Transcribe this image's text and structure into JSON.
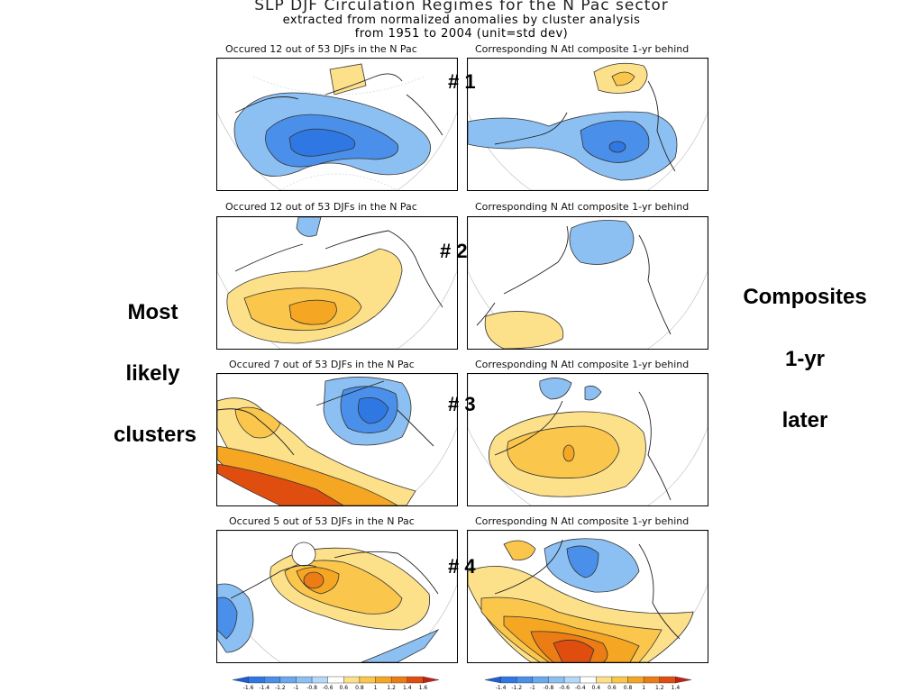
{
  "title": {
    "line1": "SLP DJF Circulation Regimes for the N Pac sector",
    "line2": "extracted from normalized anomalies by cluster analysis",
    "line3": "from 1951 to 2004 (unit=std dev)"
  },
  "captions": {
    "left": [
      "Occured 12 out of 53 DJFs in the N Pac",
      "Occured 12 out of 53 DJFs in the N Pac",
      "Occured 7 out of 53 DJFs in the N Pac",
      "Occured 5 out of 53 DJFs in the N Pac"
    ],
    "right": "Corresponding N Atl composite 1-yr behind"
  },
  "cluster_labels": [
    "# 1",
    "# 2",
    "# 3",
    "# 4"
  ],
  "left_annotation": [
    "Most",
    "likely",
    "clusters"
  ],
  "right_annotation": [
    "Composites",
    "1-yr",
    "later"
  ],
  "colorbar_left": {
    "ticks": [
      "-1.6",
      "-1.4",
      "-1.2",
      "-1",
      "-0.8",
      "-0.6",
      "0.6",
      "0.8",
      "1",
      "1.2",
      "1.4",
      "1.6"
    ],
    "colors": [
      "#1c5fd6",
      "#2f78e3",
      "#4a90ea",
      "#6aa8ef",
      "#8cc0f3",
      "#b4d8f8",
      "#ffffff",
      "#fde08a",
      "#fbc64c",
      "#f5a623",
      "#ec7d14",
      "#df4e0e",
      "#c4200f"
    ]
  },
  "colorbar_right": {
    "ticks": [
      "-1.4",
      "-1.2",
      "-1",
      "-0.8",
      "-0.6",
      "-0.4",
      "0.4",
      "0.6",
      "0.8",
      "1",
      "1.2",
      "1.4"
    ],
    "colors": [
      "#1c5fd6",
      "#2f78e3",
      "#4a90ea",
      "#6aa8ef",
      "#8cc0f3",
      "#b4d8f8",
      "#ffffff",
      "#fde08a",
      "#fbc64c",
      "#f5a623",
      "#ec7d14",
      "#df4e0e",
      "#c4200f"
    ]
  },
  "colors": {
    "blue_light": "#8cc0f3",
    "blue_mid": "#4a90ea",
    "blue_dark": "#2f78e3",
    "yellow": "#fde08a",
    "orange_light": "#fbc64c",
    "orange": "#f5a623",
    "orange_dark": "#ec7d14",
    "red": "#df4e0e"
  }
}
